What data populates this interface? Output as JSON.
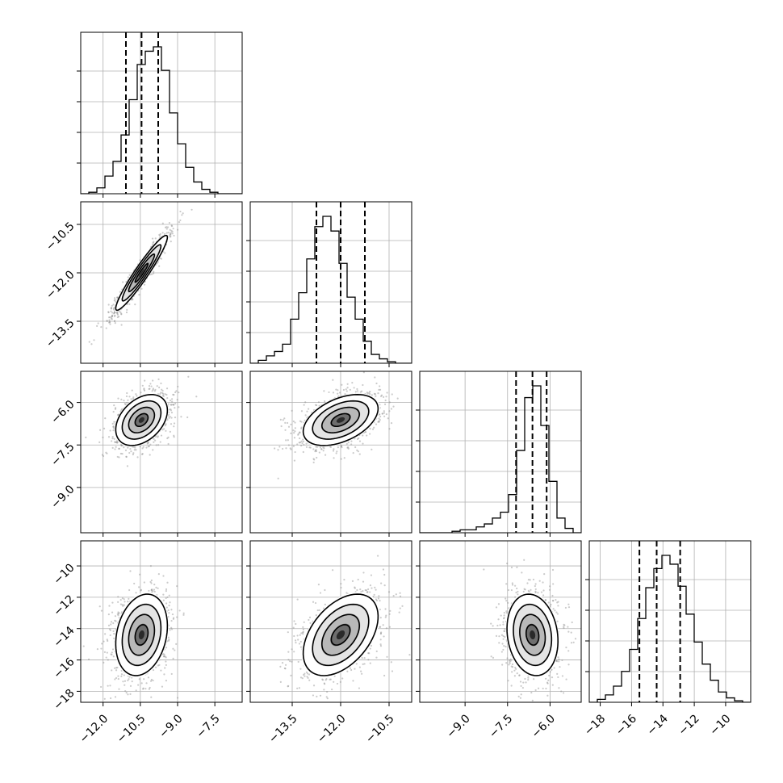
{
  "chart_data": {
    "type": "corner",
    "parameters": [
      {
        "range": [
          -12.9,
          -6.4
        ],
        "ticks": [
          -12.0,
          -10.5,
          -9.0,
          -7.5
        ],
        "tick_labels": [
          "−12.0",
          "−10.5",
          "−9.0",
          "−7.5"
        ],
        "quantiles": [
          -11.08,
          -10.45,
          -9.78
        ],
        "hist": [
          0.0,
          0.01,
          0.04,
          0.12,
          0.22,
          0.4,
          0.64,
          0.88,
          0.97,
          1.0,
          0.84,
          0.55,
          0.34,
          0.18,
          0.08,
          0.03,
          0.01,
          0.0,
          0.0,
          0.0
        ]
      },
      {
        "range": [
          -14.8,
          -9.8
        ],
        "ticks": [
          -13.5,
          -12.0,
          -10.5
        ],
        "tick_labels": [
          "−13.5",
          "−12.0",
          "−10.5"
        ],
        "quantiles": [
          -12.75,
          -12.0,
          -11.25
        ],
        "hist": [
          0.0,
          0.02,
          0.05,
          0.08,
          0.13,
          0.3,
          0.48,
          0.71,
          0.93,
          1.0,
          0.9,
          0.68,
          0.45,
          0.3,
          0.15,
          0.06,
          0.03,
          0.01,
          0.0,
          0.0
        ]
      },
      {
        "range": [
          -10.6,
          -4.9
        ],
        "ticks": [
          -9.0,
          -7.5,
          -6.0
        ],
        "tick_labels": [
          "−9.0",
          "−7.5",
          "−6.0"
        ],
        "quantiles": [
          -7.2,
          -6.62,
          -6.12
        ],
        "hist": [
          0.0,
          0.0,
          0.0,
          0.0,
          0.01,
          0.02,
          0.02,
          0.04,
          0.06,
          0.1,
          0.14,
          0.26,
          0.56,
          0.92,
          1.0,
          0.73,
          0.35,
          0.1,
          0.03,
          0.0
        ]
      },
      {
        "range": [
          -18.7,
          -8.4
        ],
        "ticks": [
          -18,
          -16,
          -14,
          -12,
          -10
        ],
        "tick_labels": [
          "−18",
          "−16",
          "−14",
          "−12",
          "−10"
        ],
        "quantiles": [
          -15.5,
          -14.4,
          -12.9
        ],
        "hist": [
          0.0,
          0.02,
          0.05,
          0.11,
          0.21,
          0.36,
          0.57,
          0.78,
          0.91,
          1.0,
          0.94,
          0.79,
          0.6,
          0.41,
          0.26,
          0.15,
          0.07,
          0.03,
          0.01,
          0.0
        ]
      }
    ],
    "correlations": [
      [
        1.0,
        0.95,
        0.38,
        0.22
      ],
      [
        0.95,
        1.0,
        0.45,
        0.45
      ],
      [
        0.38,
        0.45,
        1.0,
        -0.15
      ],
      [
        0.22,
        0.45,
        -0.15,
        1.0
      ]
    ],
    "sigmas": [
      0.52,
      0.58,
      0.45,
      1.3
    ],
    "grid": true
  }
}
